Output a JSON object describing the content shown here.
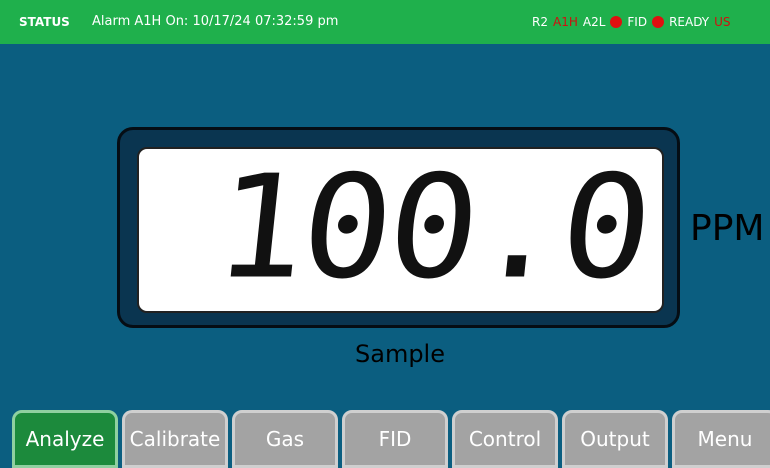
{
  "status": {
    "label": "STATUS",
    "message": "Alarm A1H On: 10/17/24 07:32:59 pm",
    "indicators": [
      {
        "text": "R2",
        "color": "#ffffff",
        "dot": false
      },
      {
        "text": "A1H",
        "color": "#d01010",
        "dot": false
      },
      {
        "text": "A2L",
        "color": "#ffffff",
        "dot": true
      },
      {
        "text": "FID",
        "color": "#ffffff",
        "dot": true
      },
      {
        "text": "READY",
        "color": "#ffffff",
        "dot": false
      },
      {
        "text": "US",
        "color": "#d01010",
        "dot": false
      }
    ]
  },
  "reading": {
    "value": "100.0",
    "unit": "PPM",
    "label": "Sample"
  },
  "tabs": {
    "active": 0,
    "items": [
      "Analyze",
      "Calibrate",
      "Gas",
      "FID",
      "Control",
      "Output",
      "Menu"
    ]
  }
}
